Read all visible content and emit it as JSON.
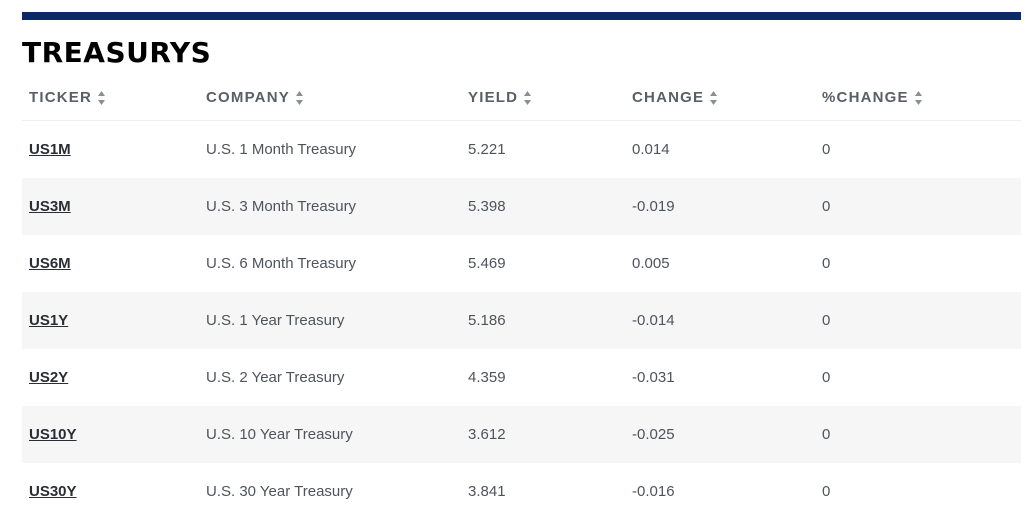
{
  "title": "TREASURYS",
  "columns": [
    "TICKER",
    "COMPANY",
    "YIELD",
    "CHANGE",
    "%CHANGE"
  ],
  "rows": [
    {
      "ticker": "US1M",
      "company": "U.S. 1 Month Treasury",
      "yield": "5.221",
      "change": "0.014",
      "pct_change": "0"
    },
    {
      "ticker": "US3M",
      "company": "U.S. 3 Month Treasury",
      "yield": "5.398",
      "change": "-0.019",
      "pct_change": "0"
    },
    {
      "ticker": "US6M",
      "company": "U.S. 6 Month Treasury",
      "yield": "5.469",
      "change": "0.005",
      "pct_change": "0"
    },
    {
      "ticker": "US1Y",
      "company": "U.S. 1 Year Treasury",
      "yield": "5.186",
      "change": "-0.014",
      "pct_change": "0"
    },
    {
      "ticker": "US2Y",
      "company": "U.S. 2 Year Treasury",
      "yield": "4.359",
      "change": "-0.031",
      "pct_change": "0"
    },
    {
      "ticker": "US10Y",
      "company": "U.S. 10 Year Treasury",
      "yield": "3.612",
      "change": "-0.025",
      "pct_change": "0"
    },
    {
      "ticker": "US30Y",
      "company": "U.S. 30 Year Treasury",
      "yield": "3.841",
      "change": "-0.016",
      "pct_change": "0"
    }
  ],
  "colors": {
    "top_bar": "#0b2a66",
    "alt_row": "#f6f6f6",
    "header_text": "#5a5e66"
  }
}
